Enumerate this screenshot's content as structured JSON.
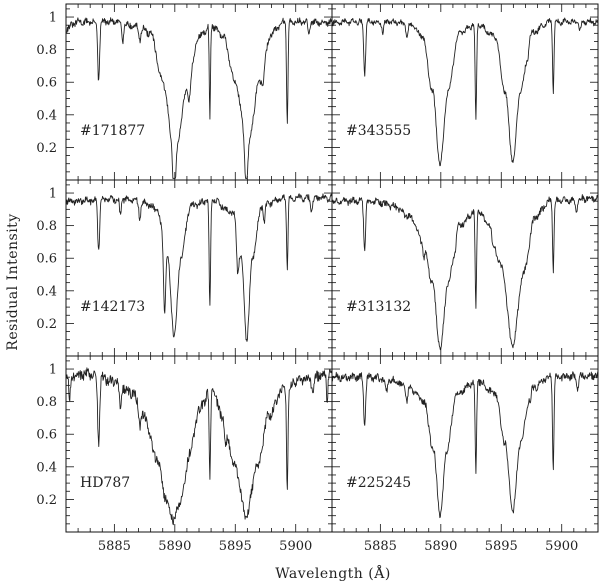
{
  "figure": {
    "xlabel": "Wavelength (Å)",
    "ylabel": "Residual Intensity"
  },
  "chart_data": {
    "type": "line",
    "layout": "3 rows x 2 columns, shared axes",
    "xlabel": "Wavelength (Å)",
    "ylabel": "Residual Intensity",
    "xlim": [
      5881,
      5903
    ],
    "ylim": [
      0,
      1.08
    ],
    "x_ticks": [
      5885,
      5890,
      5895,
      5900
    ],
    "y_ticks": [
      0.2,
      0.4,
      0.6,
      0.8,
      1
    ],
    "panels": [
      {
        "label": "#171877",
        "continuum": [
          [
            5881,
            0.93
          ],
          [
            5882,
            0.97
          ],
          [
            5885,
            0.97
          ],
          [
            5887,
            0.94
          ],
          [
            5888,
            0.9
          ],
          [
            5889,
            0.6
          ],
          [
            5890,
            0.15
          ],
          [
            5891,
            0.55
          ],
          [
            5892,
            0.88
          ],
          [
            5893,
            0.95
          ],
          [
            5894,
            0.88
          ],
          [
            5895,
            0.6
          ],
          [
            5896,
            0.2
          ],
          [
            5897,
            0.6
          ],
          [
            5898,
            0.9
          ],
          [
            5899,
            0.97
          ],
          [
            5903,
            0.97
          ]
        ],
        "lines": [
          [
            5883.7,
            0.36,
            0.08
          ],
          [
            5885.7,
            0.1,
            0.07
          ],
          [
            5887.1,
            0.08,
            0.08
          ],
          [
            5889.95,
            0.3,
            0.1
          ],
          [
            5891.2,
            0.08,
            0.08
          ],
          [
            5892.9,
            0.58,
            0.05
          ],
          [
            5895.9,
            0.3,
            0.1
          ],
          [
            5897.3,
            0.08,
            0.08
          ],
          [
            5899.3,
            0.6,
            0.06
          ],
          [
            5901.1,
            0.08,
            0.08
          ]
        ],
        "noise": 0.018
      },
      {
        "label": "#343555",
        "continuum": [
          [
            5881,
            0.97
          ],
          [
            5886,
            0.97
          ],
          [
            5887.5,
            0.95
          ],
          [
            5888.5,
            0.88
          ],
          [
            5889.3,
            0.55
          ],
          [
            5889.95,
            0.1
          ],
          [
            5890.6,
            0.55
          ],
          [
            5891.5,
            0.9
          ],
          [
            5893,
            0.96
          ],
          [
            5894.5,
            0.88
          ],
          [
            5895.3,
            0.55
          ],
          [
            5895.95,
            0.12
          ],
          [
            5896.6,
            0.55
          ],
          [
            5897.5,
            0.9
          ],
          [
            5899,
            0.97
          ],
          [
            5903,
            0.97
          ]
        ],
        "lines": [
          [
            5883.7,
            0.32,
            0.08
          ],
          [
            5885.2,
            0.06,
            0.08
          ],
          [
            5887.2,
            0.06,
            0.08
          ],
          [
            5892.9,
            0.6,
            0.06
          ],
          [
            5897.2,
            0.06,
            0.08
          ],
          [
            5899.3,
            0.42,
            0.06
          ],
          [
            5901.5,
            0.06,
            0.08
          ]
        ],
        "noise": 0.015
      },
      {
        "label": "#142173",
        "continuum": [
          [
            5881,
            0.95
          ],
          [
            5886,
            0.96
          ],
          [
            5887.5,
            0.94
          ],
          [
            5888.5,
            0.9
          ],
          [
            5889.4,
            0.6
          ],
          [
            5889.95,
            0.12
          ],
          [
            5890.5,
            0.6
          ],
          [
            5891.3,
            0.92
          ],
          [
            5893,
            0.96
          ],
          [
            5894.8,
            0.88
          ],
          [
            5895.5,
            0.6
          ],
          [
            5895.95,
            0.1
          ],
          [
            5896.4,
            0.6
          ],
          [
            5897.2,
            0.92
          ],
          [
            5899,
            0.97
          ],
          [
            5903,
            0.97
          ]
        ],
        "lines": [
          [
            5883.7,
            0.3,
            0.08
          ],
          [
            5885.5,
            0.1,
            0.07
          ],
          [
            5887.1,
            0.1,
            0.07
          ],
          [
            5889.15,
            0.38,
            0.08
          ],
          [
            5892.9,
            0.67,
            0.06
          ],
          [
            5895.2,
            0.2,
            0.08
          ],
          [
            5897.4,
            0.1,
            0.07
          ],
          [
            5899.3,
            0.42,
            0.06
          ],
          [
            5901.3,
            0.08,
            0.08
          ]
        ],
        "noise": 0.018
      },
      {
        "label": "#313132",
        "continuum": [
          [
            5881,
            0.95
          ],
          [
            5884.5,
            0.95
          ],
          [
            5886,
            0.92
          ],
          [
            5887.5,
            0.85
          ],
          [
            5888.5,
            0.7
          ],
          [
            5889.3,
            0.45
          ],
          [
            5889.95,
            0.05
          ],
          [
            5890.6,
            0.45
          ],
          [
            5891.5,
            0.8
          ],
          [
            5893,
            0.9
          ],
          [
            5894,
            0.8
          ],
          [
            5895,
            0.55
          ],
          [
            5895.95,
            0.06
          ],
          [
            5896.8,
            0.5
          ],
          [
            5897.8,
            0.85
          ],
          [
            5899,
            0.95
          ],
          [
            5903,
            0.97
          ]
        ],
        "lines": [
          [
            5883.7,
            0.28,
            0.08
          ],
          [
            5888.6,
            0.08,
            0.08
          ],
          [
            5891.2,
            0.06,
            0.08
          ],
          [
            5892.9,
            0.6,
            0.06
          ],
          [
            5894.3,
            0.08,
            0.08
          ],
          [
            5899.3,
            0.42,
            0.06
          ],
          [
            5901.2,
            0.08,
            0.08
          ]
        ],
        "noise": 0.018
      },
      {
        "label": "HD787",
        "continuum": [
          [
            5881,
            0.95
          ],
          [
            5883,
            0.97
          ],
          [
            5885,
            0.92
          ],
          [
            5886.5,
            0.85
          ],
          [
            5887.5,
            0.7
          ],
          [
            5888.5,
            0.45
          ],
          [
            5889.3,
            0.2
          ],
          [
            5889.9,
            0.07
          ],
          [
            5890.5,
            0.2
          ],
          [
            5891.3,
            0.5
          ],
          [
            5892,
            0.75
          ],
          [
            5893,
            0.88
          ],
          [
            5894,
            0.7
          ],
          [
            5895,
            0.4
          ],
          [
            5895.9,
            0.09
          ],
          [
            5896.8,
            0.4
          ],
          [
            5897.8,
            0.72
          ],
          [
            5899,
            0.88
          ],
          [
            5900.5,
            0.94
          ],
          [
            5903,
            0.97
          ]
        ],
        "lines": [
          [
            5881.3,
            0.15,
            0.06
          ],
          [
            5883.7,
            0.42,
            0.08
          ],
          [
            5885.5,
            0.15,
            0.08
          ],
          [
            5887.1,
            0.1,
            0.08
          ],
          [
            5892.9,
            0.55,
            0.06
          ],
          [
            5894.2,
            0.15,
            0.08
          ],
          [
            5899.3,
            0.6,
            0.06
          ],
          [
            5901.4,
            0.1,
            0.08
          ],
          [
            5902.6,
            0.15,
            0.06
          ]
        ],
        "noise": 0.03
      },
      {
        "label": "#225245",
        "continuum": [
          [
            5881,
            0.95
          ],
          [
            5884,
            0.95
          ],
          [
            5886,
            0.93
          ],
          [
            5887.5,
            0.88
          ],
          [
            5888.6,
            0.8
          ],
          [
            5889.4,
            0.5
          ],
          [
            5889.95,
            0.1
          ],
          [
            5890.5,
            0.5
          ],
          [
            5891.3,
            0.85
          ],
          [
            5893,
            0.93
          ],
          [
            5894.5,
            0.85
          ],
          [
            5895.3,
            0.55
          ],
          [
            5895.95,
            0.13
          ],
          [
            5896.6,
            0.55
          ],
          [
            5897.5,
            0.88
          ],
          [
            5899,
            0.95
          ],
          [
            5903,
            0.96
          ]
        ],
        "lines": [
          [
            5883.7,
            0.3,
            0.08
          ],
          [
            5885.5,
            0.08,
            0.07
          ],
          [
            5887.2,
            0.08,
            0.07
          ],
          [
            5892.9,
            0.58,
            0.06
          ],
          [
            5897.4,
            0.08,
            0.07
          ],
          [
            5899.3,
            0.55,
            0.06
          ],
          [
            5901.3,
            0.08,
            0.08
          ]
        ],
        "noise": 0.02
      }
    ]
  }
}
